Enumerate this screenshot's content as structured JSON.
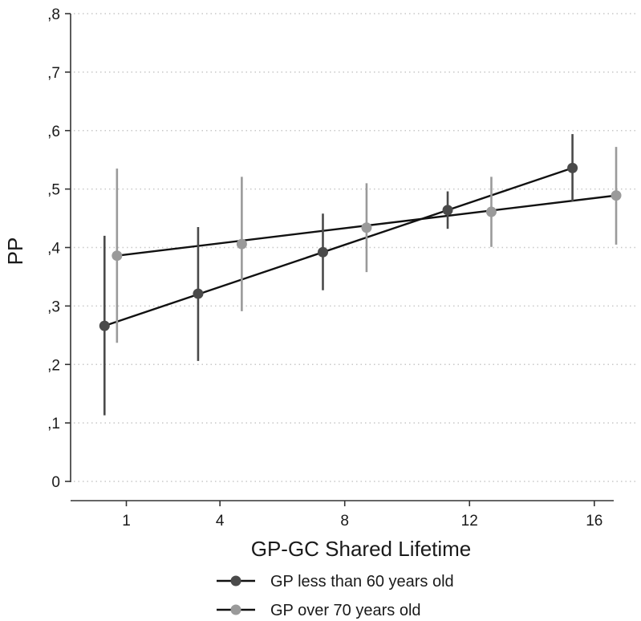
{
  "chart_data": {
    "type": "line",
    "title": "",
    "xlabel": "GP-GC Shared Lifetime",
    "ylabel": "PP",
    "xlim": [
      -0.3,
      17.7
    ],
    "ylim": [
      0,
      0.8
    ],
    "x_ticks": [
      {
        "value": 1,
        "label": "1"
      },
      {
        "value": 4,
        "label": "4"
      },
      {
        "value": 8,
        "label": "8"
      },
      {
        "value": 12,
        "label": "12"
      },
      {
        "value": 16,
        "label": "16"
      }
    ],
    "y_ticks": [
      {
        "value": 0,
        "label": "0"
      },
      {
        "value": 0.1,
        "label": ",1"
      },
      {
        "value": 0.2,
        "label": ",2"
      },
      {
        "value": 0.3,
        "label": ",3"
      },
      {
        "value": 0.4,
        "label": ",4"
      },
      {
        "value": 0.5,
        "label": ",5"
      },
      {
        "value": 0.6,
        "label": ",6"
      },
      {
        "value": 0.7,
        "label": ",7"
      },
      {
        "value": 0.8,
        "label": ",8"
      }
    ],
    "grid": "horizontal dotted",
    "legend_position": "bottom",
    "series": [
      {
        "name": "GP less than 60 years old",
        "color": "#4a4a4a",
        "points": [
          {
            "x": 0.3,
            "y": 0.266,
            "low": 0.113,
            "high": 0.42
          },
          {
            "x": 3.3,
            "y": 0.321,
            "low": 0.206,
            "high": 0.435
          },
          {
            "x": 7.3,
            "y": 0.392,
            "low": 0.327,
            "high": 0.458
          },
          {
            "x": 11.3,
            "y": 0.464,
            "low": 0.432,
            "high": 0.496
          },
          {
            "x": 15.3,
            "y": 0.536,
            "low": 0.479,
            "high": 0.594
          }
        ]
      },
      {
        "name": "GP over 70 years old",
        "color": "#9a9a9a",
        "points": [
          {
            "x": 0.7,
            "y": 0.386,
            "low": 0.237,
            "high": 0.535
          },
          {
            "x": 4.7,
            "y": 0.406,
            "low": 0.291,
            "high": 0.521
          },
          {
            "x": 8.7,
            "y": 0.434,
            "low": 0.358,
            "high": 0.51
          },
          {
            "x": 12.7,
            "y": 0.461,
            "low": 0.401,
            "high": 0.521
          },
          {
            "x": 16.7,
            "y": 0.489,
            "low": 0.405,
            "high": 0.572
          }
        ]
      }
    ]
  }
}
